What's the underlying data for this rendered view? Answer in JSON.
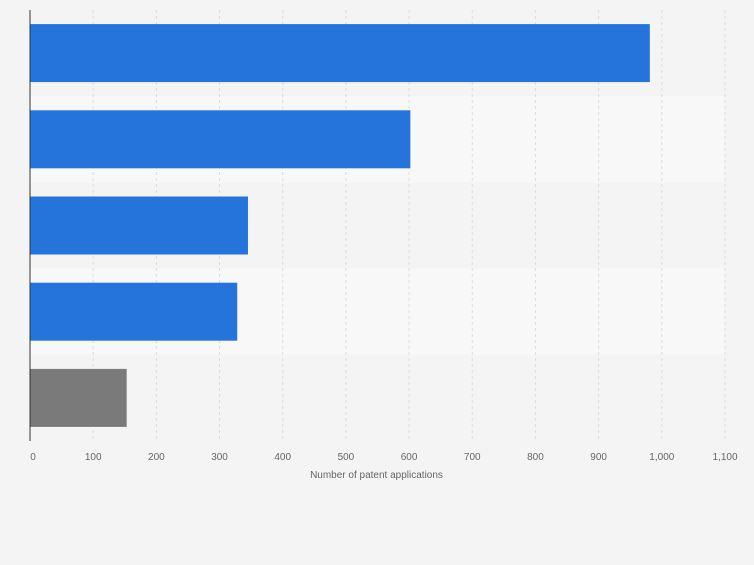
{
  "chart_data": {
    "type": "bar",
    "orientation": "horizontal",
    "title": "",
    "categories": [
      "",
      "",
      "",
      "",
      ""
    ],
    "values": [
      981,
      602,
      345,
      328,
      153
    ],
    "bar_colors": [
      "#2574dc",
      "#2574dc",
      "#2574dc",
      "#2574dc",
      "#7a7a7a"
    ],
    "xlabel": "Number of patent applications",
    "ylabel": "",
    "xlim": [
      0,
      1100
    ],
    "x_ticks": [
      0,
      100,
      200,
      300,
      400,
      500,
      600,
      700,
      800,
      900,
      1000,
      1100
    ],
    "x_tick_labels": [
      "0",
      "100",
      "200",
      "300",
      "400",
      "500",
      "600",
      "700",
      "800",
      "900",
      "1,000",
      "1,100"
    ],
    "grid": "vertical",
    "legend": "none",
    "colors": {
      "background": "#f4f4f4",
      "band_alt": "#f8f8f8",
      "gridline": "#dcdcdc",
      "axis": "#333333",
      "text": "#666666"
    }
  }
}
